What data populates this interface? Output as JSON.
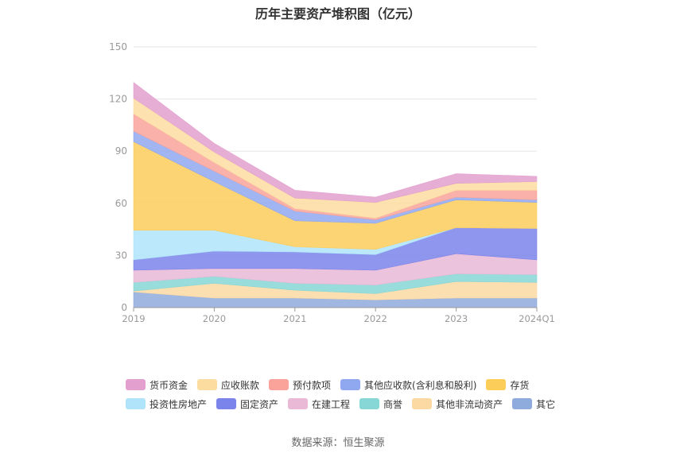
{
  "chart_data": {
    "type": "area",
    "stacked": true,
    "title": "历年主要资产堆积图（亿元）",
    "x": [
      "2019",
      "2020",
      "2021",
      "2022",
      "2023",
      "2024Q1"
    ],
    "ylim": [
      0,
      150
    ],
    "yticks": [
      0,
      30,
      60,
      90,
      120,
      150
    ],
    "grid": true,
    "legend_position": "bottom",
    "series": [
      {
        "name": "其它",
        "color": "#8faadc",
        "values": [
          9,
          5.5,
          5.5,
          4.5,
          5.5,
          5.5
        ]
      },
      {
        "name": "其他非流动资产",
        "color": "#fcd9a3",
        "values": [
          0.5,
          8.5,
          4.5,
          3.5,
          9.5,
          9
        ]
      },
      {
        "name": "商誉",
        "color": "#86d7d6",
        "values": [
          5,
          4,
          4,
          5,
          4.5,
          4.5
        ]
      },
      {
        "name": "在建工程",
        "color": "#e9b9d6",
        "values": [
          7,
          4.5,
          8.5,
          8.5,
          11.5,
          8.5
        ]
      },
      {
        "name": "固定资产",
        "color": "#7b84ea",
        "values": [
          6,
          10,
          9.5,
          9,
          15,
          18
        ]
      },
      {
        "name": "投资性房地产",
        "color": "#b0e4fb",
        "values": [
          17,
          12,
          3,
          3,
          0,
          0
        ]
      },
      {
        "name": "存货",
        "color": "#fdcd5a",
        "values": [
          51,
          28,
          15,
          15,
          16,
          15
        ]
      },
      {
        "name": "其他应收款(含利息和股利)",
        "color": "#90a8f0",
        "values": [
          6,
          6,
          5.5,
          2,
          1.5,
          1.5
        ]
      },
      {
        "name": "预付款项",
        "color": "#f9a39a",
        "values": [
          10,
          5,
          1.5,
          1,
          4,
          5.5
        ]
      },
      {
        "name": "应收账款",
        "color": "#fddca0",
        "values": [
          9,
          6,
          6,
          9,
          4,
          5
        ]
      },
      {
        "name": "货币资金",
        "color": "#e3a0ce",
        "values": [
          9,
          5,
          4.5,
          3,
          5.5,
          3
        ]
      }
    ],
    "legend_order": [
      "货币资金",
      "应收账款",
      "预付款项",
      "其他应收款(含利息和股利)",
      "存货",
      "投资性房地产",
      "固定资产",
      "在建工程",
      "商誉",
      "其他非流动资产",
      "其它"
    ]
  },
  "source": "数据来源：恒生聚源"
}
